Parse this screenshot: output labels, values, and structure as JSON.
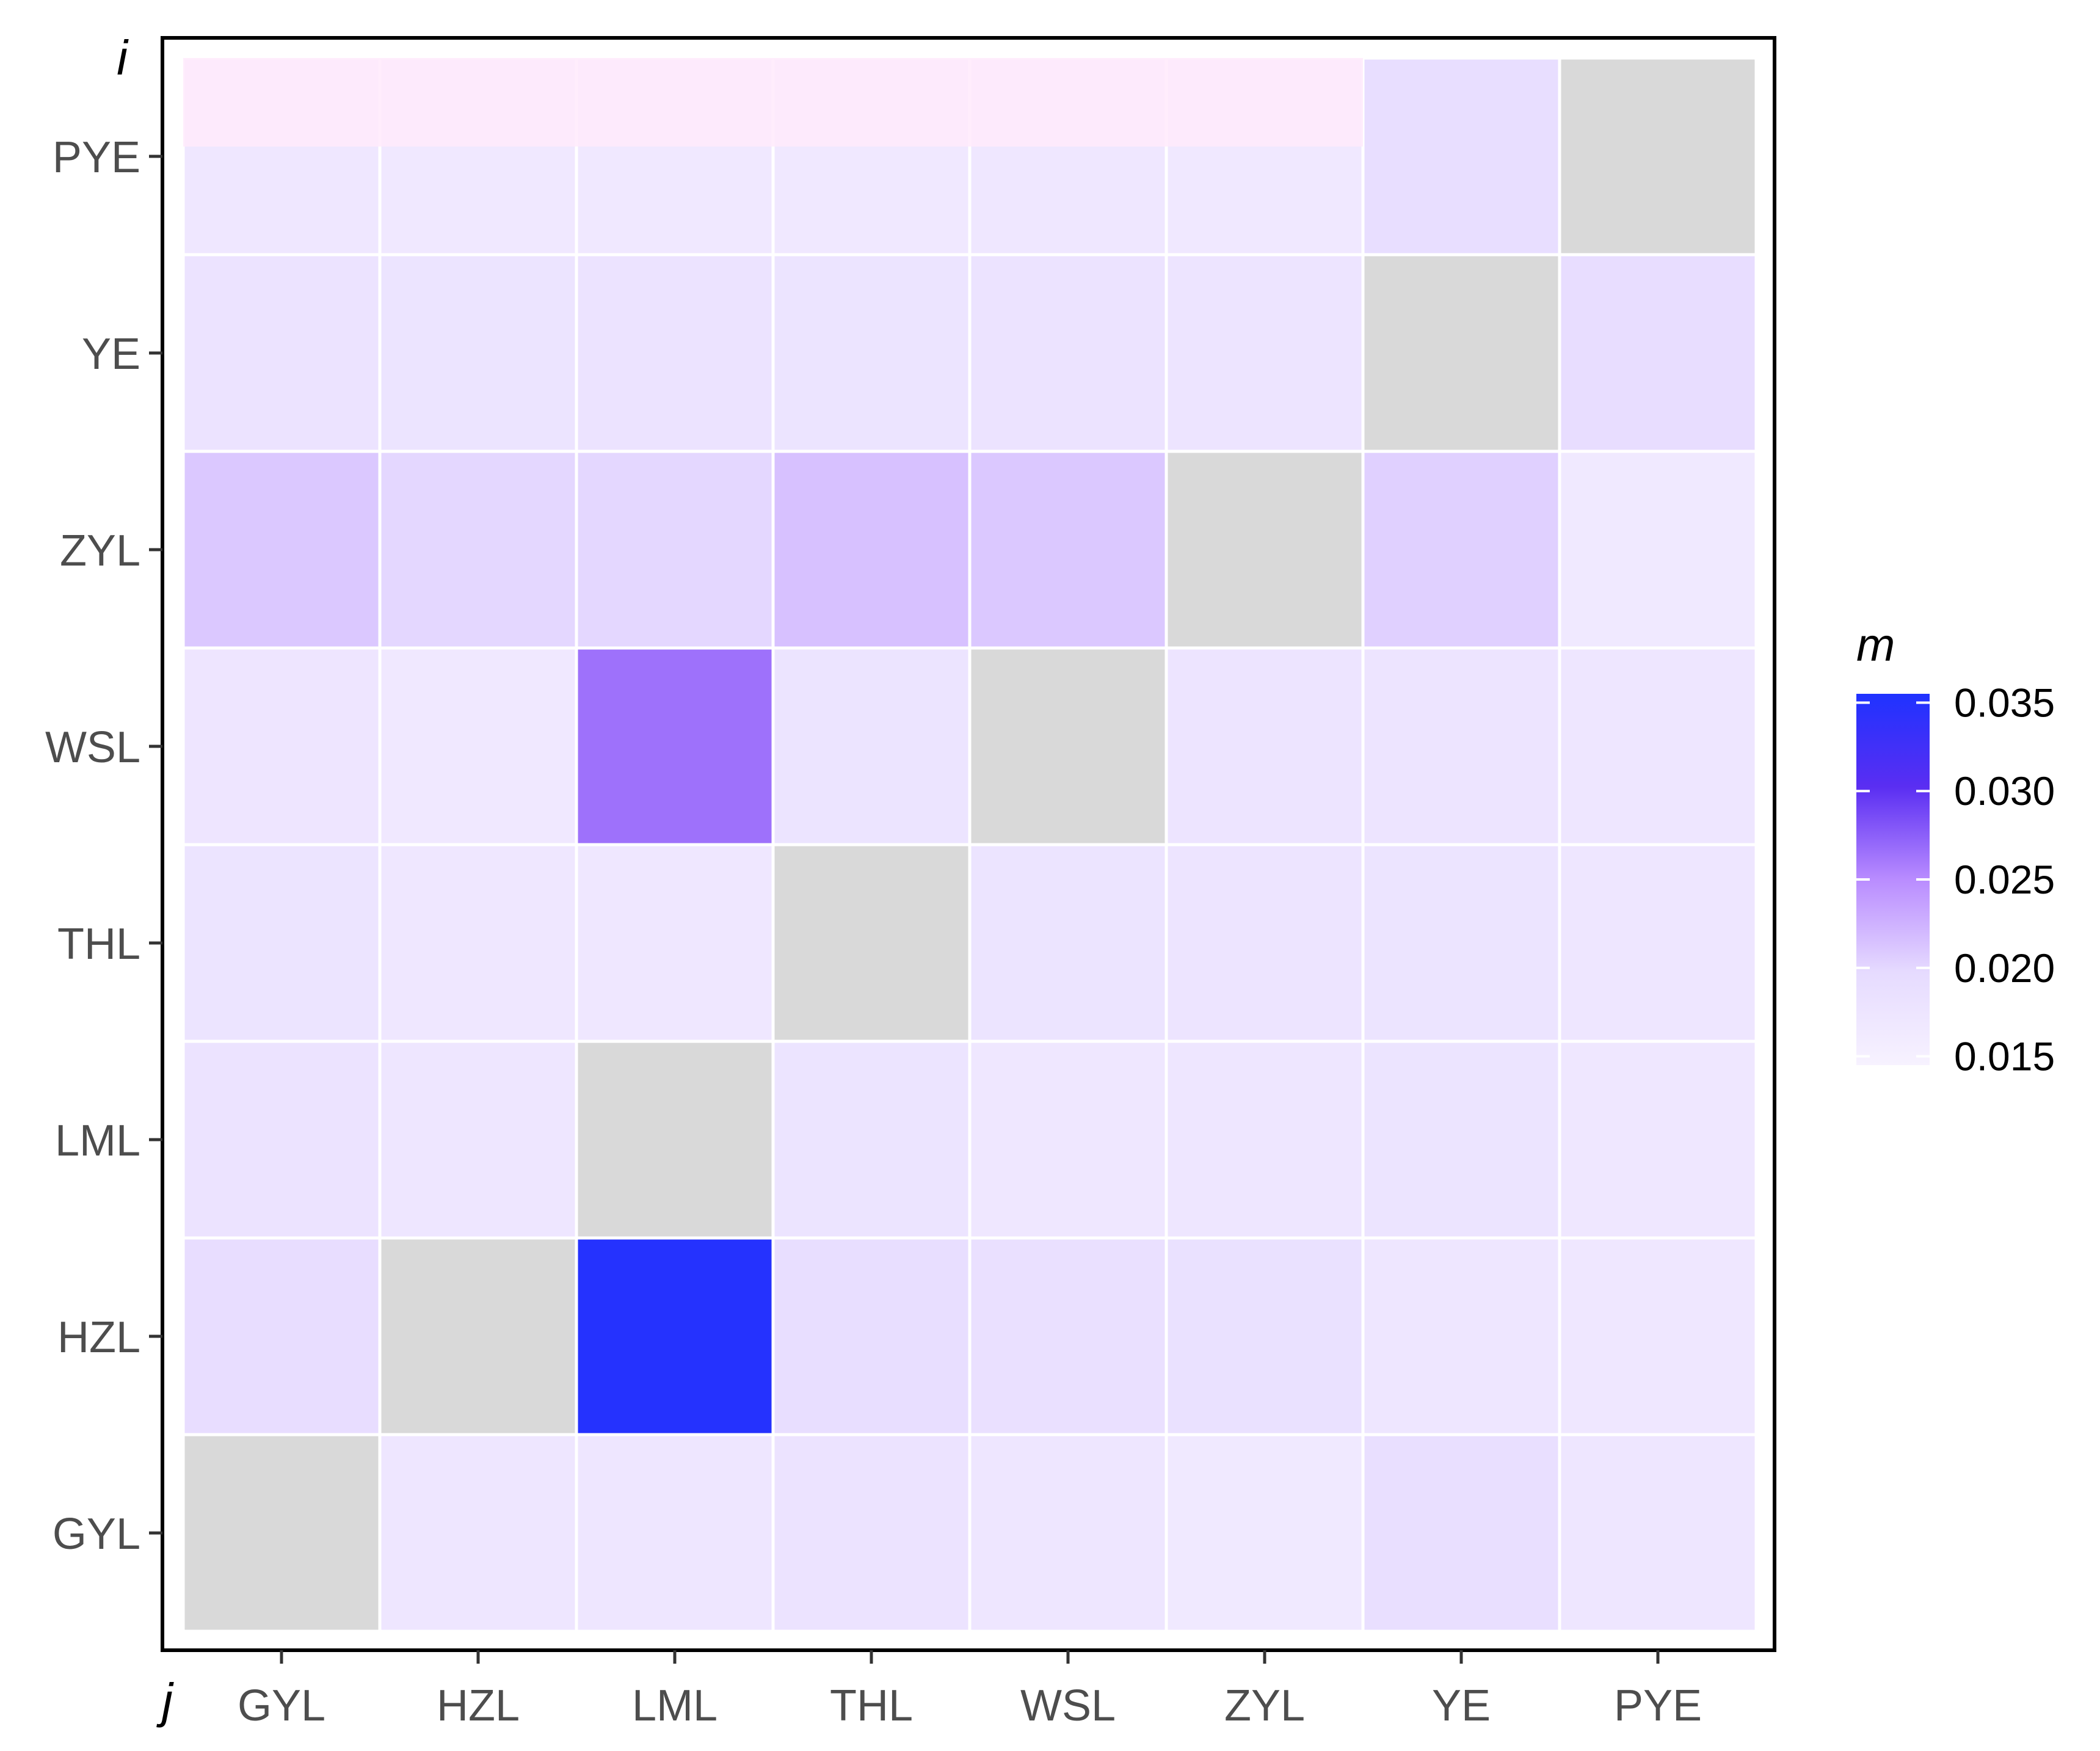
{
  "chart_data": {
    "type": "heatmap",
    "x_categories": [
      "GYL",
      "HZL",
      "LML",
      "THL",
      "WSL",
      "ZYL",
      "YE",
      "PYE"
    ],
    "y_categories": [
      "GYL",
      "HZL",
      "LML",
      "THL",
      "WSL",
      "ZYL",
      "YE",
      "PYE"
    ],
    "xlabel": "j",
    "ylabel": "i",
    "legend": {
      "title": "m",
      "placement": "right",
      "range": [
        0.0145,
        0.0355
      ],
      "ticks": [
        0.015,
        0.02,
        0.025,
        0.03,
        0.035
      ],
      "tick_labels": [
        "0.015",
        "0.020",
        "0.025",
        "0.030",
        "0.035"
      ],
      "colors": [
        "#f7f2ff",
        "#e6dbff",
        "#b98cff",
        "#5a2ef2",
        "#1f32ff"
      ]
    },
    "missing_color": "#d9d9d9",
    "grid_color": "#ffffff",
    "rows": [
      {
        "i": "PYE",
        "values": [
          0.017,
          0.0168,
          0.0168,
          0.0168,
          0.0169,
          0.0168,
          0.019,
          null
        ]
      },
      {
        "i": "YE",
        "values": [
          0.018,
          0.0178,
          0.018,
          0.0178,
          0.018,
          0.0176,
          null,
          0.0192
        ]
      },
      {
        "i": "ZYL",
        "values": [
          0.021,
          0.02,
          0.02,
          0.0215,
          0.021,
          null,
          0.0205,
          0.0166
        ]
      },
      {
        "i": "WSL",
        "values": [
          0.0174,
          0.0168,
          0.0265,
          0.0178,
          null,
          0.0176,
          0.0177,
          0.0172
        ]
      },
      {
        "i": "THL",
        "values": [
          0.0178,
          0.0169,
          0.017,
          null,
          0.0178,
          0.0177,
          0.0178,
          0.0172
        ]
      },
      {
        "i": "LML",
        "values": [
          0.018,
          0.0172,
          null,
          0.0178,
          0.017,
          0.0172,
          0.0178,
          0.017
        ]
      },
      {
        "i": "HZL",
        "values": [
          0.0192,
          null,
          0.035,
          0.019,
          0.0186,
          0.0184,
          0.0172,
          0.017
        ]
      },
      {
        "i": "GYL",
        "values": [
          null,
          0.0172,
          0.0172,
          0.018,
          0.0172,
          0.0166,
          0.0188,
          0.0172
        ]
      }
    ]
  }
}
